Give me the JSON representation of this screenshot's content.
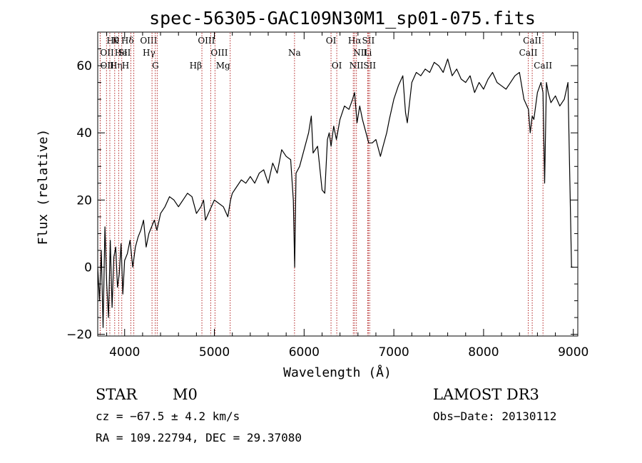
{
  "chart_data": {
    "type": "line",
    "title": "spec-56305-GAC109N30M1_sp01-075.fits",
    "xlabel": "Wavelength (Å)",
    "ylabel": "Flux (relative)",
    "xlim": [
      3700,
      9050
    ],
    "ylim": [
      -20.5,
      70
    ],
    "xticks": [
      4000,
      5000,
      6000,
      7000,
      8000,
      9000
    ],
    "yticks": [
      -20,
      0,
      20,
      40,
      60
    ],
    "series": [
      {
        "name": "flux",
        "x": [
          3700,
          3720,
          3740,
          3760,
          3780,
          3800,
          3820,
          3840,
          3860,
          3880,
          3900,
          3920,
          3940,
          3960,
          3980,
          4000,
          4030,
          4060,
          4090,
          4120,
          4150,
          4180,
          4210,
          4240,
          4270,
          4300,
          4330,
          4360,
          4400,
          4450,
          4500,
          4550,
          4600,
          4650,
          4700,
          4750,
          4800,
          4850,
          4880,
          4900,
          4950,
          5000,
          5050,
          5100,
          5150,
          5180,
          5200,
          5250,
          5300,
          5350,
          5400,
          5450,
          5500,
          5550,
          5600,
          5650,
          5700,
          5750,
          5800,
          5850,
          5880,
          5895,
          5910,
          5950,
          6000,
          6050,
          6080,
          6100,
          6150,
          6200,
          6230,
          6260,
          6280,
          6300,
          6330,
          6360,
          6400,
          6450,
          6500,
          6540,
          6563,
          6590,
          6620,
          6650,
          6690,
          6720,
          6760,
          6800,
          6850,
          6880,
          6920,
          6950,
          7000,
          7050,
          7100,
          7130,
          7150,
          7200,
          7250,
          7300,
          7350,
          7400,
          7450,
          7500,
          7550,
          7600,
          7650,
          7700,
          7750,
          7800,
          7850,
          7900,
          7950,
          8000,
          8050,
          8100,
          8150,
          8200,
          8250,
          8300,
          8350,
          8400,
          8450,
          8500,
          8520,
          8542,
          8560,
          8600,
          8640,
          8662,
          8680,
          8700,
          8720,
          8750,
          8800,
          8850,
          8900,
          8940,
          8980,
          9000
        ],
        "values": [
          0,
          -10,
          5,
          -18,
          12,
          -5,
          -15,
          8,
          -12,
          3,
          6,
          -6,
          -2,
          7,
          -8,
          2,
          4,
          8,
          0,
          6,
          9,
          11,
          14,
          6,
          10,
          12,
          14,
          11,
          16,
          18,
          21,
          20,
          18,
          20,
          22,
          21,
          16,
          18,
          20,
          14,
          17,
          20,
          19,
          18,
          15,
          20,
          22,
          24,
          26,
          25,
          27,
          25,
          28,
          29,
          25,
          31,
          28,
          35,
          33,
          32,
          20,
          0,
          28,
          30,
          35,
          40,
          45,
          34,
          36,
          23,
          22,
          38,
          40,
          36,
          42,
          38,
          44,
          48,
          47,
          50,
          52,
          43,
          48,
          44,
          40,
          37,
          37,
          38,
          33,
          36,
          40,
          44,
          50,
          54,
          57,
          46,
          43,
          55,
          58,
          57,
          59,
          58,
          61,
          60,
          58,
          62,
          57,
          59,
          56,
          55,
          57,
          52,
          55,
          53,
          56,
          58,
          55,
          54,
          53,
          55,
          57,
          58,
          50,
          47,
          40,
          45,
          44,
          52,
          55,
          52,
          25,
          55,
          52,
          49,
          51,
          48,
          50,
          55,
          0,
          0
        ]
      }
    ],
    "lines": [
      {
        "label": "Hθ",
        "wave": 3798,
        "row": 0,
        "side": "start"
      },
      {
        "label": "OII",
        "wave": 3727,
        "row": 1,
        "side": "start"
      },
      {
        "label": "OII",
        "wave": 3728,
        "row": 2,
        "side": "start"
      },
      {
        "label": "Hη",
        "wave": 3835,
        "row": 2,
        "side": "start"
      },
      {
        "label": "K",
        "wave": 3934,
        "row": 0,
        "side": "end"
      },
      {
        "label": "He",
        "wave": 3889,
        "row": 1,
        "side": "start"
      },
      {
        "label": "H",
        "wave": 3968,
        "row": 2,
        "side": "start"
      },
      {
        "label": "Hδ",
        "wave": 4102,
        "row": 0,
        "side": "end"
      },
      {
        "label": "SII",
        "wave": 4069,
        "row": 1,
        "side": "end"
      },
      {
        "label": "OIII",
        "wave": 4363,
        "row": 0,
        "side": "end"
      },
      {
        "label": "Hγ",
        "wave": 4341,
        "row": 1,
        "side": "end"
      },
      {
        "label": "G",
        "wave": 4305,
        "row": 2,
        "side": "start"
      },
      {
        "label": "Hβ",
        "wave": 4861,
        "row": 2,
        "side": "end"
      },
      {
        "label": "OIII",
        "wave": 5007,
        "row": 0,
        "side": "end"
      },
      {
        "label": "OIII",
        "wave": 4959,
        "row": 1,
        "side": "start"
      },
      {
        "label": "Mg",
        "wave": 5176,
        "row": 2,
        "side": "end"
      },
      {
        "label": "Na",
        "wave": 5893,
        "row": 1,
        "side": "middle"
      },
      {
        "label": "OI",
        "wave": 6300,
        "row": 0,
        "side": "middle"
      },
      {
        "label": "OI",
        "wave": 6364,
        "row": 2,
        "side": "middle"
      },
      {
        "label": "Hα",
        "wave": 6563,
        "row": 0,
        "side": "middle"
      },
      {
        "label": "SII",
        "wave": 6716,
        "row": 0,
        "side": "middle"
      },
      {
        "label": "NII",
        "wave": 6548,
        "row": 1,
        "side": "start"
      },
      {
        "label": "Li",
        "wave": 6708,
        "row": 1,
        "side": "middle"
      },
      {
        "label": "NII",
        "wave": 6583,
        "row": 2,
        "side": "middle"
      },
      {
        "label": "SII",
        "wave": 6731,
        "row": 2,
        "side": "middle"
      },
      {
        "label": "CaII",
        "wave": 8542,
        "row": 0,
        "side": "middle"
      },
      {
        "label": "CaII",
        "wave": 8498,
        "row": 1,
        "side": "middle"
      },
      {
        "label": "CaII",
        "wave": 8662,
        "row": 2,
        "side": "middle"
      }
    ]
  },
  "info": {
    "class_label": "STAR",
    "subclass": "M0",
    "survey": "LAMOST DR3",
    "cz": "cz = −67.5 ± 4.2 km/s",
    "obs_date": "Obs−Date: 20130112",
    "coords": "RA = 109.22794, DEC =  29.37080"
  },
  "colors": {
    "spectrum": "#000000",
    "line_markers": "#b22222"
  }
}
